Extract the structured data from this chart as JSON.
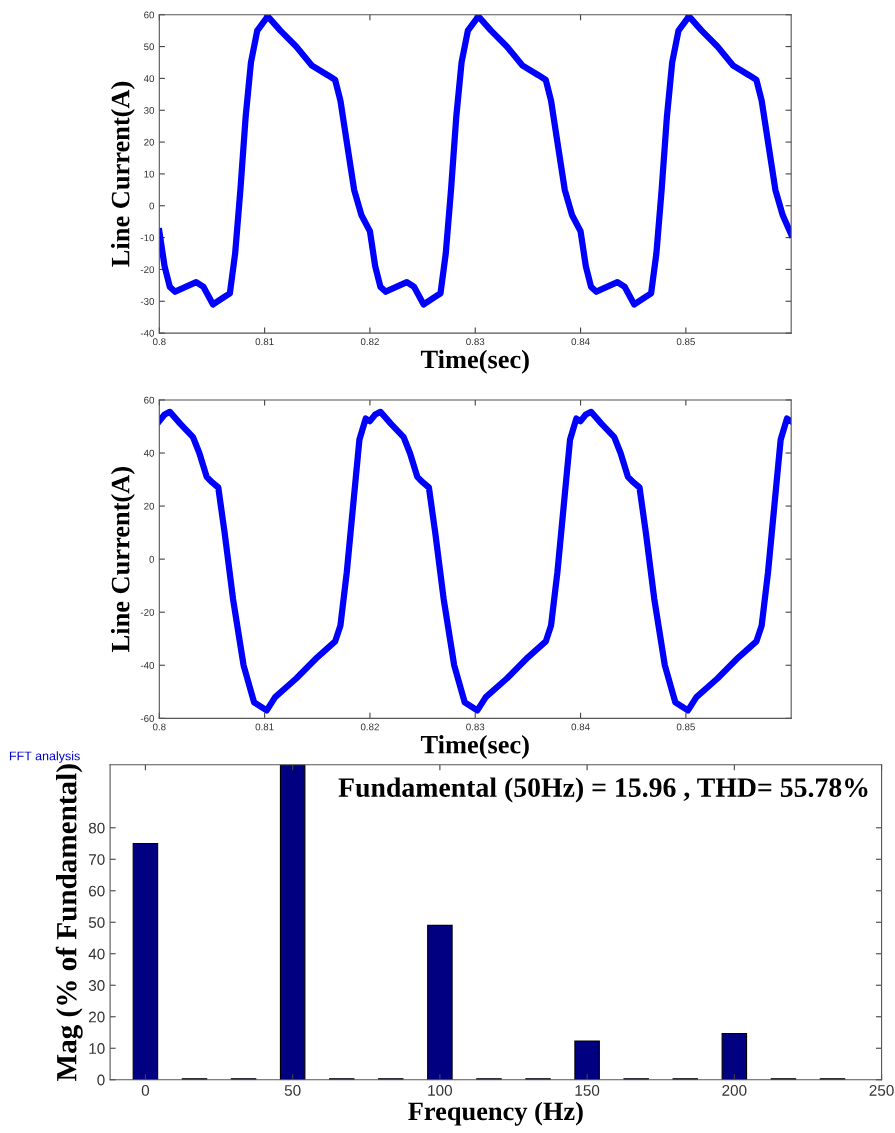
{
  "chart_data": [
    {
      "type": "line",
      "xlabel": "Time(sec)",
      "ylabel": "Line Current(A)",
      "xlim": [
        0.8,
        0.86
      ],
      "ylim": [
        -40,
        60
      ],
      "xticks": [
        0.8,
        0.81,
        0.82,
        0.83,
        0.84,
        0.85
      ],
      "yticks": [
        -40,
        -30,
        -20,
        -10,
        0,
        10,
        20,
        30,
        40,
        50,
        60
      ],
      "grid": false,
      "legend": false,
      "series": [
        {
          "color": "#0000ff",
          "x": [
            0.8,
            0.8005,
            0.801,
            0.8015,
            0.8025,
            0.8035,
            0.8042,
            0.8051,
            0.806,
            0.8067,
            0.8072,
            0.8077,
            0.8082,
            0.8087,
            0.8093,
            0.8103,
            0.8115,
            0.813,
            0.8145,
            0.816,
            0.8167,
            0.8172,
            0.8178,
            0.8185,
            0.8192,
            0.82,
            0.8205,
            0.821,
            0.8215,
            0.8225,
            0.8235,
            0.8242,
            0.8251,
            0.826,
            0.8267,
            0.8272,
            0.8277,
            0.8282,
            0.8287,
            0.8293,
            0.8303,
            0.8315,
            0.833,
            0.8345,
            0.836,
            0.8367,
            0.8372,
            0.8378,
            0.8385,
            0.8392,
            0.84,
            0.8405,
            0.841,
            0.8415,
            0.8425,
            0.8435,
            0.8442,
            0.8451,
            0.846,
            0.8467,
            0.8472,
            0.8477,
            0.8482,
            0.8487,
            0.8493,
            0.8503,
            0.8515,
            0.853,
            0.8545,
            0.856,
            0.8567,
            0.8572,
            0.8578,
            0.8585,
            0.8592,
            0.86
          ],
          "values": [
            -8,
            -19,
            -25.5,
            -27,
            -25.5,
            -24,
            -25.5,
            -31,
            -29,
            -27.5,
            -15,
            5,
            28,
            45,
            55,
            59.5,
            55,
            50,
            44,
            41,
            39.5,
            33,
            20,
            5,
            -3,
            -8,
            -19,
            -25.5,
            -27,
            -25.5,
            -24,
            -25.5,
            -31,
            -29,
            -27.5,
            -15,
            5,
            28,
            45,
            55,
            59.5,
            55,
            50,
            44,
            41,
            39.5,
            33,
            20,
            5,
            -3,
            -8,
            -19,
            -25.5,
            -27,
            -25.5,
            -24,
            -25.5,
            -31,
            -29,
            -27.5,
            -15,
            5,
            28,
            45,
            55,
            59.5,
            55,
            50,
            44,
            41,
            39.5,
            33,
            20,
            5,
            -3,
            -9
          ]
        }
      ]
    },
    {
      "type": "line",
      "xlabel": "Time(sec)",
      "ylabel": "Line Current(A)",
      "xlim": [
        0.8,
        0.86
      ],
      "ylim": [
        -60,
        60
      ],
      "xticks": [
        0.8,
        0.81,
        0.82,
        0.83,
        0.84,
        0.85
      ],
      "yticks": [
        -60,
        -40,
        -20,
        0,
        20,
        40,
        60
      ],
      "grid": false,
      "legend": false,
      "series": [
        {
          "color": "#0000ff",
          "x": [
            0.8,
            0.8005,
            0.801,
            0.802,
            0.8032,
            0.8038,
            0.8045,
            0.805,
            0.8056,
            0.8062,
            0.807,
            0.808,
            0.809,
            0.8102,
            0.811,
            0.813,
            0.815,
            0.8167,
            0.8172,
            0.8178,
            0.8184,
            0.819,
            0.8196,
            0.82,
            0.8205,
            0.821,
            0.822,
            0.8232,
            0.8238,
            0.8245,
            0.825,
            0.8256,
            0.8262,
            0.827,
            0.828,
            0.829,
            0.8302,
            0.831,
            0.833,
            0.835,
            0.8367,
            0.8372,
            0.8378,
            0.8384,
            0.839,
            0.8396,
            0.84,
            0.8405,
            0.841,
            0.842,
            0.8432,
            0.8438,
            0.8445,
            0.845,
            0.8456,
            0.8462,
            0.847,
            0.848,
            0.849,
            0.8502,
            0.851,
            0.853,
            0.855,
            0.8567,
            0.8572,
            0.8578,
            0.8584,
            0.859,
            0.8596,
            0.86
          ],
          "values": [
            52,
            54.5,
            55.5,
            51,
            46,
            40,
            31,
            29,
            27,
            10,
            -15,
            -40,
            -54,
            -57,
            -52,
            -45,
            -37,
            -31,
            -25,
            -5,
            20,
            45,
            53,
            52,
            54.5,
            55.5,
            51,
            46,
            40,
            31,
            29,
            27,
            10,
            -15,
            -40,
            -54,
            -57,
            -52,
            -45,
            -37,
            -31,
            -25,
            -5,
            20,
            45,
            53,
            52,
            54.5,
            55.5,
            51,
            46,
            40,
            31,
            29,
            27,
            10,
            -15,
            -40,
            -54,
            -57,
            -52,
            -45,
            -37,
            -31,
            -25,
            -5,
            20,
            45,
            53,
            52
          ]
        }
      ]
    },
    {
      "type": "bar",
      "title": "Fundamental (50Hz) = 15.96 , THD= 55.78%",
      "xlabel": "Frequency (Hz)",
      "ylabel": "Mag (% of Fundamental)",
      "xlim": [
        -12,
        250
      ],
      "ylim": [
        0,
        100
      ],
      "xticks": [
        0,
        50,
        100,
        150,
        200,
        250
      ],
      "yticks": [
        0,
        10,
        20,
        30,
        40,
        50,
        60,
        70,
        80
      ],
      "grid": false,
      "legend": false,
      "annotations": [
        "FFT analysis"
      ],
      "series": [
        {
          "color": "#000080",
          "x": [
            0,
            16.67,
            33.33,
            50,
            66.67,
            83.33,
            100,
            116.67,
            133.33,
            150,
            166.67,
            183.33,
            200,
            216.67,
            233.33
          ],
          "values": [
            75,
            0.3,
            0.3,
            100,
            0.3,
            0.3,
            49,
            0.3,
            0.3,
            12.3,
            0.3,
            0.3,
            14.7,
            0.3,
            0.3
          ]
        }
      ]
    }
  ]
}
